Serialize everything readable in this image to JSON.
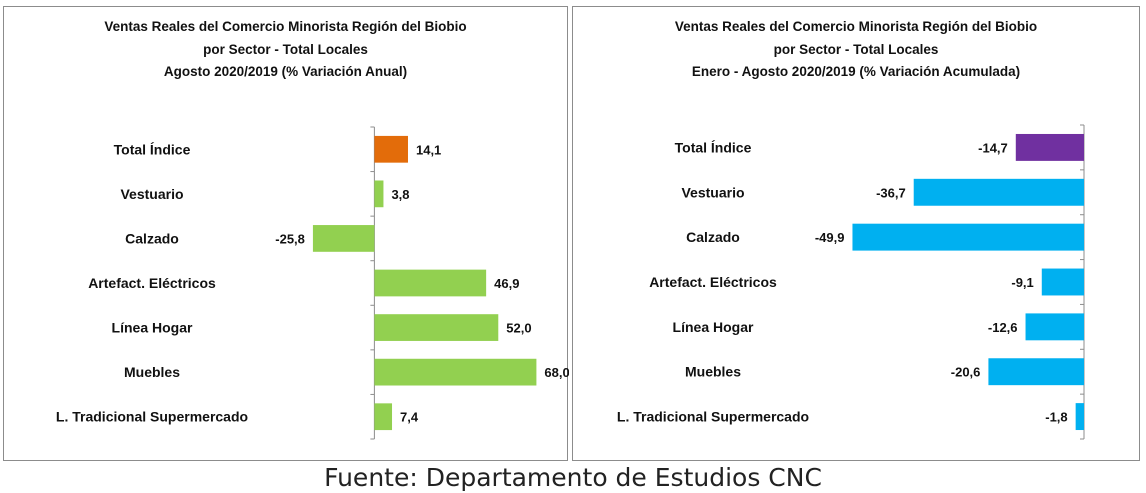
{
  "chart_data": [
    {
      "type": "bar",
      "orientation": "horizontal",
      "title_lines": [
        "Ventas Reales del Comercio Minorista  Región del Biobio",
        "por Sector - Total Locales",
        "Agosto 2020/2019 (% Variación Anual)"
      ],
      "categories": [
        "Total Índice",
        "Vestuario",
        "Calzado",
        "Artefact. Eléctricos",
        "Línea Hogar",
        "Muebles",
        "L. Tradicional Supermercado"
      ],
      "values": [
        14.1,
        3.8,
        -25.8,
        46.9,
        52.0,
        68.0,
        7.4
      ],
      "value_labels": [
        "14,1",
        "3,8",
        "-25,8",
        "46,9",
        "52,0",
        "68,0",
        "7,4"
      ],
      "bar_colors": [
        "#e36c0a",
        "#92d050",
        "#92d050",
        "#92d050",
        "#92d050",
        "#92d050",
        "#92d050"
      ],
      "xlim": [
        -35,
        80
      ],
      "grid": false,
      "legend": "none"
    },
    {
      "type": "bar",
      "orientation": "horizontal",
      "title_lines": [
        "Ventas Reales del Comercio Minorista Región del Biobio",
        "por Sector - Total Locales",
        "Enero - Agosto  2020/2019 (% Variación Acumulada)"
      ],
      "categories": [
        "Total Índice",
        "Vestuario",
        "Calzado",
        "Artefact. Eléctricos",
        "Línea Hogar",
        "Muebles",
        "L. Tradicional Supermercado"
      ],
      "values": [
        -14.7,
        -36.7,
        -49.9,
        -9.1,
        -12.6,
        -20.6,
        -1.8
      ],
      "value_labels": [
        "-14,7",
        "-36,7",
        "-49,9",
        "-9,1",
        "-12,6",
        "-20,6",
        "-1,8"
      ],
      "bar_colors": [
        "#7030a0",
        "#00b0f0",
        "#00b0f0",
        "#00b0f0",
        "#00b0f0",
        "#00b0f0",
        "#00b0f0"
      ],
      "xlim": [
        -50,
        0
      ],
      "grid": false,
      "legend": "none"
    }
  ],
  "source": "Fuente: Departamento de Estudios CNC"
}
